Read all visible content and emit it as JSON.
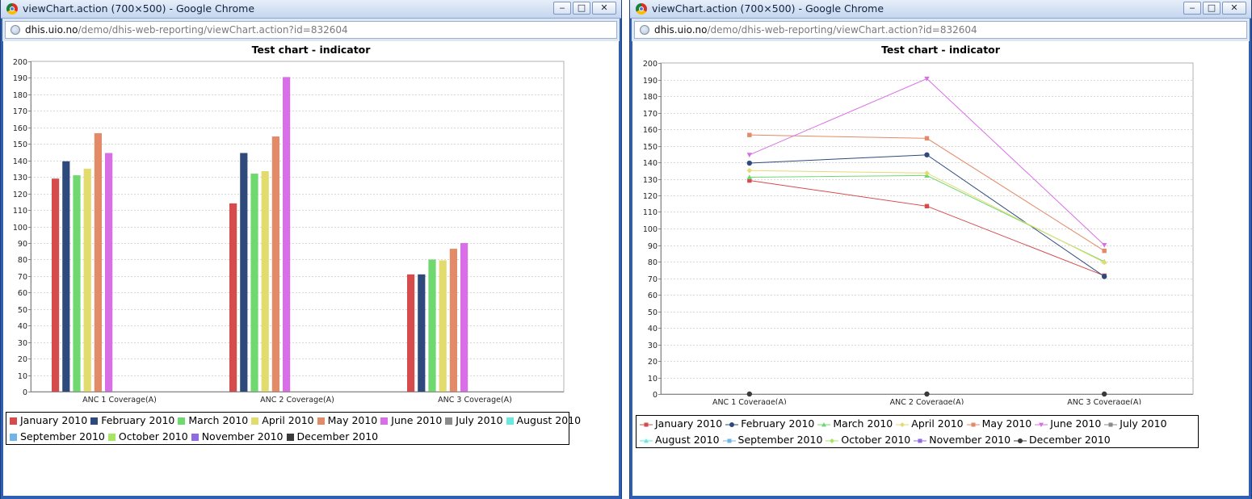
{
  "windows": [
    {
      "title": "viewChart.action (700×500) - Google Chrome",
      "url_host": "dhis.uio.no",
      "url_path": "/demo/dhis-web-reporting/viewChart.action?id=832604",
      "controls": {
        "minimize": "‒",
        "maximize": "□",
        "close": "✕"
      }
    },
    {
      "title": "viewChart.action (700×500) - Google Chrome",
      "url_host": "dhis.uio.no",
      "url_path": "/demo/dhis-web-reporting/viewChart.action?id=832604",
      "controls": {
        "minimize": "‒",
        "maximize": "□",
        "close": "✕"
      }
    }
  ],
  "chart_data": [
    {
      "type": "bar",
      "title": "Test chart - indicator",
      "categories": [
        "ANC 1 Coverage(A)",
        "ANC 2 Coverage(A)",
        "ANC 3 Coverage(A)"
      ],
      "ylim": [
        0,
        200
      ],
      "ytick_step": 10,
      "grid": true,
      "legend_position": "bottom",
      "series": [
        {
          "name": "January 2010",
          "color": "#d64b4b",
          "values": [
            129,
            114,
            71
          ]
        },
        {
          "name": "February 2010",
          "color": "#2e4a7d",
          "values": [
            139.5,
            144.5,
            71
          ]
        },
        {
          "name": "March 2010",
          "color": "#6fd86f",
          "values": [
            131,
            132,
            80
          ]
        },
        {
          "name": "April 2010",
          "color": "#e2dc6e",
          "values": [
            135,
            133.5,
            79.5
          ]
        },
        {
          "name": "May 2010",
          "color": "#e38a68",
          "values": [
            156.5,
            154.5,
            86.5
          ]
        },
        {
          "name": "June 2010",
          "color": "#d96fe6",
          "values": [
            144.5,
            190.5,
            90
          ]
        },
        {
          "name": "July 2010",
          "color": "#8a8a8a",
          "values": [
            null,
            null,
            null
          ]
        },
        {
          "name": "August 2010",
          "color": "#69e8df",
          "values": [
            null,
            null,
            null
          ]
        },
        {
          "name": "September 2010",
          "color": "#6fb5e6",
          "values": [
            null,
            null,
            null
          ]
        },
        {
          "name": "October 2010",
          "color": "#a5e660",
          "values": [
            null,
            null,
            null
          ]
        },
        {
          "name": "November 2010",
          "color": "#8f6ae0",
          "values": [
            null,
            null,
            null
          ]
        },
        {
          "name": "December 2010",
          "color": "#3a3a3a",
          "values": [
            null,
            null,
            null
          ]
        }
      ]
    },
    {
      "type": "line",
      "title": "Test chart - indicator",
      "categories": [
        "ANC 1 Coverage(A)",
        "ANC 2 Coverage(A)",
        "ANC 3 Coverage(A)"
      ],
      "ylim": [
        0,
        200
      ],
      "ytick_step": 10,
      "grid": true,
      "legend_position": "bottom",
      "series": [
        {
          "name": "January 2010",
          "color": "#d64b4b",
          "marker": "square",
          "values": [
            129,
            113.5,
            71.5
          ]
        },
        {
          "name": "February 2010",
          "color": "#2e4a7d",
          "marker": "circle",
          "values": [
            139.5,
            144.5,
            71
          ]
        },
        {
          "name": "March 2010",
          "color": "#6fd86f",
          "marker": "triangle-up",
          "values": [
            131,
            132,
            80
          ]
        },
        {
          "name": "April 2010",
          "color": "#e2dc6e",
          "marker": "diamond",
          "values": [
            135,
            133.5,
            79.5
          ]
        },
        {
          "name": "May 2010",
          "color": "#e38a68",
          "marker": "square",
          "values": [
            156.5,
            154.5,
            86.5
          ]
        },
        {
          "name": "June 2010",
          "color": "#d96fe6",
          "marker": "triangle-down",
          "values": [
            144.5,
            190.5,
            90
          ]
        },
        {
          "name": "July 2010",
          "color": "#8a8a8a",
          "marker": "square",
          "values": [
            null,
            null,
            null
          ]
        },
        {
          "name": "August 2010",
          "color": "#69e8df",
          "marker": "triangle-up",
          "values": [
            null,
            null,
            null
          ]
        },
        {
          "name": "September 2010",
          "color": "#6fb5e6",
          "marker": "square",
          "values": [
            null,
            null,
            null
          ]
        },
        {
          "name": "October 2010",
          "color": "#a5e660",
          "marker": "diamond",
          "values": [
            null,
            null,
            null
          ]
        },
        {
          "name": "November 2010",
          "color": "#8f6ae0",
          "marker": "square",
          "values": [
            null,
            null,
            null
          ]
        },
        {
          "name": "December 2010",
          "color": "#3a3a3a",
          "marker": "circle",
          "values": [
            0,
            0,
            0
          ]
        }
      ]
    }
  ]
}
